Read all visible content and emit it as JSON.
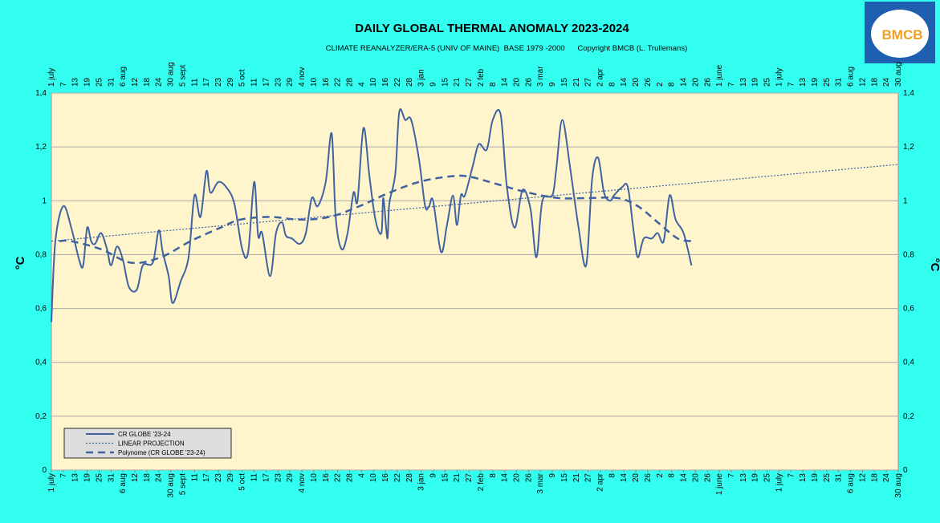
{
  "chart_data": {
    "type": "line",
    "title": "DAILY GLOBAL THERMAL ANOMALY 2023-2024",
    "subtitle": "CLIMATE REANALYZER/ERA-5 (UNIV OF MAINE)  BASE 1979 -2000      Copyright BMCB (L. Trullemans)",
    "logo_text": "BMCB",
    "y_label": "°C",
    "xlim": [
      0,
      426
    ],
    "xticks": [
      {
        "value": 0,
        "label": "1 july"
      },
      {
        "value": 6,
        "label": "7"
      },
      {
        "value": 12,
        "label": "13"
      },
      {
        "value": 18,
        "label": "19"
      },
      {
        "value": 24,
        "label": "25"
      },
      {
        "value": 30,
        "label": "31"
      },
      {
        "value": 36,
        "label": "6 aug"
      },
      {
        "value": 42,
        "label": "12"
      },
      {
        "value": 48,
        "label": "18"
      },
      {
        "value": 54,
        "label": "24"
      },
      {
        "value": 60,
        "label": "30 aug"
      },
      {
        "value": 66,
        "label": "5 sept"
      },
      {
        "value": 72,
        "label": "11"
      },
      {
        "value": 78,
        "label": "17"
      },
      {
        "value": 84,
        "label": "23"
      },
      {
        "value": 90,
        "label": "29"
      },
      {
        "value": 96,
        "label": "5 oct"
      },
      {
        "value": 102,
        "label": "11"
      },
      {
        "value": 108,
        "label": "17"
      },
      {
        "value": 114,
        "label": "23"
      },
      {
        "value": 120,
        "label": "29"
      },
      {
        "value": 126,
        "label": "4 nov"
      },
      {
        "value": 132,
        "label": "10"
      },
      {
        "value": 138,
        "label": "16"
      },
      {
        "value": 144,
        "label": "22"
      },
      {
        "value": 150,
        "label": "28"
      },
      {
        "value": 156,
        "label": "4"
      },
      {
        "value": 162,
        "label": "10"
      },
      {
        "value": 168,
        "label": "16"
      },
      {
        "value": 174,
        "label": "22"
      },
      {
        "value": 180,
        "label": "28"
      },
      {
        "value": 186,
        "label": "3 jan"
      },
      {
        "value": 192,
        "label": "9"
      },
      {
        "value": 198,
        "label": "15"
      },
      {
        "value": 204,
        "label": "21"
      },
      {
        "value": 210,
        "label": "27"
      },
      {
        "value": 216,
        "label": "2 feb"
      },
      {
        "value": 222,
        "label": "8"
      },
      {
        "value": 228,
        "label": "14"
      },
      {
        "value": 234,
        "label": "20"
      },
      {
        "value": 240,
        "label": "26"
      },
      {
        "value": 246,
        "label": "3 mar"
      },
      {
        "value": 252,
        "label": "9"
      },
      {
        "value": 258,
        "label": "15"
      },
      {
        "value": 264,
        "label": "21"
      },
      {
        "value": 270,
        "label": "27"
      },
      {
        "value": 276,
        "label": "2 apr"
      },
      {
        "value": 282,
        "label": "8"
      },
      {
        "value": 288,
        "label": "14"
      },
      {
        "value": 294,
        "label": "20"
      },
      {
        "value": 300,
        "label": "26"
      },
      {
        "value": 306,
        "label": "2"
      },
      {
        "value": 312,
        "label": "8"
      },
      {
        "value": 318,
        "label": "14"
      },
      {
        "value": 324,
        "label": "20"
      },
      {
        "value": 330,
        "label": "26"
      },
      {
        "value": 336,
        "label": "1 june"
      },
      {
        "value": 342,
        "label": "7"
      },
      {
        "value": 348,
        "label": "13"
      },
      {
        "value": 354,
        "label": "19"
      },
      {
        "value": 360,
        "label": "25"
      },
      {
        "value": 366,
        "label": "1 july"
      },
      {
        "value": 372,
        "label": "7"
      },
      {
        "value": 378,
        "label": "13"
      },
      {
        "value": 384,
        "label": "19"
      },
      {
        "value": 390,
        "label": "25"
      },
      {
        "value": 396,
        "label": "31"
      },
      {
        "value": 402,
        "label": "6 aug"
      },
      {
        "value": 408,
        "label": "12"
      },
      {
        "value": 414,
        "label": "18"
      },
      {
        "value": 420,
        "label": "24"
      },
      {
        "value": 426,
        "label": "30 aug"
      }
    ],
    "ylim": [
      0,
      1.4
    ],
    "yticks": [
      0,
      {
        "value": 0.2,
        "label": "0,2"
      },
      {
        "value": 0.4,
        "label": "0,4"
      },
      {
        "value": 0.6,
        "label": "0,6"
      },
      {
        "value": 0.8,
        "label": "0,8"
      },
      1,
      {
        "value": 1.2,
        "label": "1,2"
      },
      {
        "value": 1.4,
        "label": "1,4"
      }
    ],
    "grid": true,
    "legend": "lower-left",
    "series": [
      {
        "name": "CR GLOBE '23-24",
        "color": "#3f62a0",
        "style": "solid",
        "x": [
          0,
          2,
          6,
          10,
          14,
          16,
          18,
          20,
          22,
          25,
          28,
          30,
          33,
          36,
          39,
          43,
          46,
          51,
          54,
          56,
          59,
          61,
          65,
          69,
          72,
          75,
          78,
          80,
          84,
          88,
          92,
          96,
          99,
          102,
          104,
          106,
          110,
          113,
          116,
          118,
          121,
          125,
          128,
          131,
          134,
          138,
          141,
          143,
          146,
          149,
          152,
          154,
          157,
          160,
          163,
          166,
          167,
          169,
          170,
          173,
          175,
          178,
          181,
          185,
          188,
          190,
          192,
          196,
          199,
          202,
          204,
          206,
          208,
          212,
          215,
          219,
          222,
          226,
          229,
          233,
          237,
          241,
          244,
          247,
          252,
          254,
          257,
          261,
          265,
          269,
          272,
          275,
          278,
          281,
          283,
          287,
          290,
          293,
          295,
          298,
          302,
          305,
          308,
          311,
          314,
          318,
          322
        ],
        "values": [
          0.55,
          0.85,
          0.98,
          0.9,
          0.78,
          0.76,
          0.9,
          0.85,
          0.84,
          0.88,
          0.82,
          0.76,
          0.83,
          0.78,
          0.68,
          0.67,
          0.76,
          0.77,
          0.89,
          0.81,
          0.72,
          0.62,
          0.7,
          0.79,
          1.02,
          0.94,
          1.11,
          1.03,
          1.07,
          1.05,
          0.99,
          0.82,
          0.81,
          1.07,
          0.87,
          0.88,
          0.72,
          0.88,
          0.92,
          0.87,
          0.86,
          0.84,
          0.88,
          1.01,
          0.98,
          1.07,
          1.25,
          0.94,
          0.82,
          0.88,
          1.03,
          1.0,
          1.27,
          1.09,
          0.93,
          0.88,
          1.01,
          0.86,
          0.99,
          1.1,
          1.33,
          1.3,
          1.3,
          1.15,
          0.98,
          0.98,
          1.0,
          0.81,
          0.91,
          1.02,
          0.91,
          1.02,
          1.02,
          1.13,
          1.21,
          1.19,
          1.3,
          1.32,
          1.06,
          0.9,
          1.04,
          0.97,
          0.79,
          1.0,
          1.02,
          1.12,
          1.3,
          1.12,
          0.91,
          0.76,
          1.08,
          1.16,
          1.03,
          1.0,
          1.02,
          1.05,
          1.05,
          0.88,
          0.79,
          0.86,
          0.86,
          0.88,
          0.85,
          1.02,
          0.93,
          0.88,
          0.76
        ]
      },
      {
        "name": "LINEAR PROJECTION",
        "color": "#3f62a0",
        "style": "dotted",
        "x": [
          0,
          426
        ],
        "values": [
          0.85,
          1.135
        ]
      },
      {
        "name": "Polynome (CR GLOBE '23-24)",
        "color": "#3f62a0",
        "style": "dashed",
        "x": [
          4,
          10,
          25,
          40,
          55,
          70,
          85,
          95,
          110,
          125,
          140,
          155,
          170,
          185,
          200,
          210,
          225,
          240,
          255,
          270,
          285,
          295,
          305,
          315,
          322
        ],
        "values": [
          0.85,
          0.85,
          0.82,
          0.77,
          0.79,
          0.85,
          0.9,
          0.93,
          0.94,
          0.93,
          0.94,
          0.98,
          1.03,
          1.07,
          1.09,
          1.09,
          1.06,
          1.03,
          1.01,
          1.01,
          1.01,
          0.98,
          0.92,
          0.86,
          0.85
        ]
      }
    ]
  }
}
